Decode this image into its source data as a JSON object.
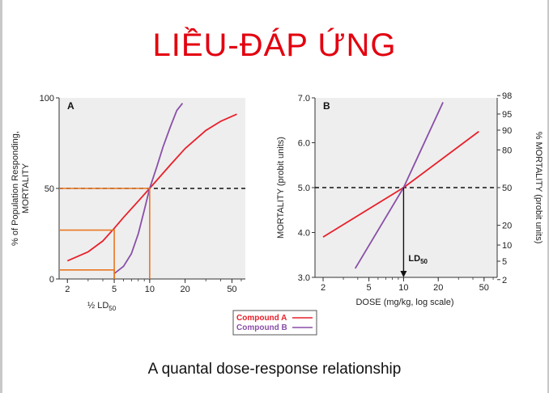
{
  "slide": {
    "title": "LIỀU-ĐÁP ỨNG",
    "caption": "A quantal dose-response relationship"
  },
  "colors": {
    "compound_a": "#e8202a",
    "compound_b": "#8a4fa8",
    "ld_guides": "#e87722",
    "title": "#e3000f"
  },
  "legend": {
    "entries": [
      "Compound A",
      "Compound B"
    ]
  },
  "chart_data": [
    {
      "type": "line",
      "panel_label": "A",
      "xscale": "log",
      "xlim": [
        1.7,
        65
      ],
      "ylim": [
        0,
        100
      ],
      "xticks": [
        "2",
        "5",
        "10",
        "20",
        "50"
      ],
      "yticks": [
        "0",
        "50",
        "100"
      ],
      "ylabel": "% of Population Responding, MORTALITY",
      "xlabel_extra": "½ LD",
      "xlabel_extra_sub": "50",
      "reference_y": 50,
      "series": [
        {
          "name": "Compound A",
          "points": [
            [
              2,
              10
            ],
            [
              3,
              15
            ],
            [
              4,
              21
            ],
            [
              5,
              28
            ],
            [
              6,
              34
            ],
            [
              8,
              43
            ],
            [
              10,
              50
            ],
            [
              15,
              63
            ],
            [
              20,
              72
            ],
            [
              30,
              82
            ],
            [
              40,
              87
            ],
            [
              55,
              91
            ]
          ]
        },
        {
          "name": "Compound B",
          "points": [
            [
              5,
              3
            ],
            [
              6,
              7
            ],
            [
              7,
              14
            ],
            [
              8,
              25
            ],
            [
              9,
              38
            ],
            [
              10,
              50
            ],
            [
              11.5,
              62
            ],
            [
              13,
              73
            ],
            [
              15,
              84
            ],
            [
              17,
              93
            ],
            [
              19,
              97
            ]
          ]
        }
      ],
      "ld_guides": [
        {
          "x": 5,
          "y": 27
        },
        {
          "x": 5,
          "y": 5
        },
        {
          "x": 10,
          "y": 50
        }
      ]
    },
    {
      "type": "line",
      "panel_label": "B",
      "xscale": "log",
      "xlim": [
        1.7,
        65
      ],
      "ylim": [
        3.0,
        7.0
      ],
      "xticks": [
        "2",
        "5",
        "10",
        "20",
        "50"
      ],
      "yticks": [
        "3.0",
        "4.0",
        "5.0",
        "6.0",
        "7.0"
      ],
      "y2ticks": [
        {
          "label": "98",
          "probit": 7.05
        },
        {
          "label": "95",
          "probit": 6.64
        },
        {
          "label": "90",
          "probit": 6.28
        },
        {
          "label": "80",
          "probit": 5.84
        },
        {
          "label": "50",
          "probit": 5.0
        },
        {
          "label": "20",
          "probit": 4.16
        },
        {
          "label": "10",
          "probit": 3.72
        },
        {
          "label": "5",
          "probit": 3.36
        },
        {
          "label": "2",
          "probit": 2.95
        }
      ],
      "xlabel": "DOSE (mg/kg, log scale)",
      "ylabel": "MORTALITY (probit units)",
      "y2label": "% MORTALITY (probit units)",
      "reference_y": 5.0,
      "annotation": {
        "text": "LD",
        "sub": "50",
        "x": 10
      },
      "series": [
        {
          "name": "Compound A",
          "points": [
            [
              2,
              3.9
            ],
            [
              10,
              5.0
            ],
            [
              45,
              6.25
            ]
          ]
        },
        {
          "name": "Compound B",
          "points": [
            [
              3.8,
              3.2
            ],
            [
              10,
              5.0
            ],
            [
              22,
              6.9
            ]
          ]
        }
      ]
    }
  ]
}
